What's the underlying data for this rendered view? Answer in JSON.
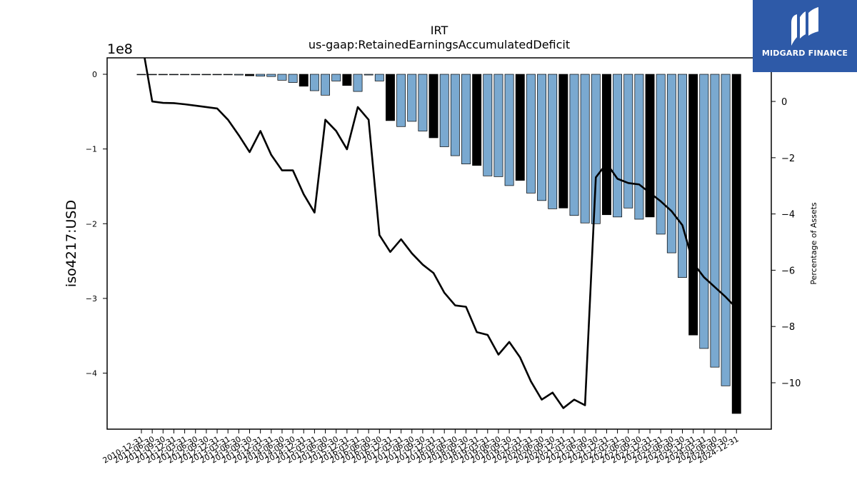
{
  "logo": {
    "text": "MIDGARD FINANCE",
    "color": "#2e5aa8"
  },
  "chart_data": {
    "type": "bar",
    "title": "IRT",
    "subtitle": "us-gaap:RetainedEarningsAccumulatedDeficit",
    "ylabel": "iso4217:USD",
    "y_offset_label": "1e8",
    "y2label": "Percentage of Assets",
    "ylim": [
      -4.75,
      0.22
    ],
    "y2lim": [
      -11.65,
      1.55
    ],
    "y_ticks": [
      0,
      -1,
      -2,
      -3,
      -4
    ],
    "y2_ticks": [
      0,
      -2,
      -4,
      -6,
      -8,
      -10
    ],
    "grid": false,
    "categories": [
      "2010-12-31",
      "2011-06-30",
      "2011-09-30",
      "2011-12-31",
      "2012-03-31",
      "2012-06-30",
      "2012-09-30",
      "2012-12-31",
      "2013-03-31",
      "2013-06-30",
      "2013-09-30",
      "2013-12-31",
      "2014-03-31",
      "2014-06-30",
      "2014-09-30",
      "2014-12-31",
      "2015-03-31",
      "2015-06-30",
      "2015-09-30",
      "2015-12-31",
      "2016-03-31",
      "2016-06-30",
      "2016-09-30",
      "2016-12-31",
      "2017-03-31",
      "2017-06-30",
      "2017-09-30",
      "2017-12-31",
      "2018-03-31",
      "2018-06-30",
      "2018-09-30",
      "2018-12-31",
      "2019-03-31",
      "2019-06-30",
      "2019-09-30",
      "2019-12-31",
      "2020-03-31",
      "2020-06-30",
      "2020-09-30",
      "2020-12-31",
      "2021-03-31",
      "2021-06-30",
      "2021-09-30",
      "2021-12-31",
      "2022-03-31",
      "2022-06-30",
      "2022-09-30",
      "2022-12-31",
      "2023-03-31",
      "2023-06-30",
      "2023-09-30",
      "2023-12-31",
      "2024-03-31",
      "2024-06-30",
      "2024-09-30",
      "2024-12-31"
    ],
    "series": [
      {
        "kind": "bar",
        "unit": "1e8 USD",
        "colors": {
          "quarter": "#7aa9d0",
          "annual": "#000000"
        },
        "annual_flags": [
          0,
          0,
          0,
          0,
          0,
          0,
          0,
          0,
          0,
          0,
          1,
          0,
          0,
          0,
          0,
          1,
          0,
          0,
          0,
          1,
          0,
          0,
          0,
          1,
          0,
          0,
          0,
          1,
          0,
          0,
          0,
          1,
          0,
          0,
          0,
          1,
          0,
          0,
          0,
          1,
          0,
          0,
          0,
          1,
          0,
          0,
          0,
          1,
          0,
          0,
          0,
          1,
          0,
          0,
          0,
          1
        ],
        "values": [
          -0.002,
          -0.002,
          -0.002,
          -0.002,
          -0.002,
          -0.002,
          -0.003,
          -0.003,
          -0.005,
          -0.01,
          -0.02,
          -0.025,
          -0.03,
          -0.08,
          -0.11,
          -0.16,
          -0.22,
          -0.28,
          -0.09,
          -0.15,
          -0.23,
          -0.01,
          -0.09,
          -0.62,
          -0.7,
          -0.63,
          -0.76,
          -0.85,
          -0.97,
          -1.09,
          -1.2,
          -1.22,
          -1.36,
          -1.37,
          -1.49,
          -1.42,
          -1.59,
          -1.69,
          -1.8,
          -1.79,
          -1.89,
          -1.99,
          -2.0,
          -1.88,
          -1.91,
          -1.79,
          -1.94,
          -1.91,
          -2.14,
          -2.39,
          -2.72,
          -3.49,
          -3.67,
          -3.92,
          -4.17,
          -4.54
        ]
      },
      {
        "kind": "line",
        "unit": "percent",
        "color": "#000000",
        "values": [
          2.2,
          0.0,
          -0.05,
          -0.06,
          -0.1,
          -0.15,
          -0.2,
          -0.25,
          -0.65,
          -1.2,
          -1.8,
          -1.05,
          -1.9,
          -2.45,
          -2.45,
          -3.3,
          -3.95,
          -0.65,
          -1.05,
          -1.7,
          -0.2,
          -0.65,
          -4.75,
          -5.35,
          -4.9,
          -5.4,
          -5.8,
          -6.1,
          -6.8,
          -7.25,
          -7.3,
          -8.2,
          -8.3,
          -9.0,
          -8.55,
          -9.1,
          -9.95,
          -10.6,
          -10.35,
          -10.9,
          -10.6,
          -10.8,
          -2.7,
          -2.2,
          -2.75,
          -2.9,
          -2.95,
          -3.25,
          -3.55,
          -3.9,
          -4.4,
          -5.75,
          -6.25,
          -6.6,
          -6.95,
          -7.35
        ]
      }
    ]
  }
}
